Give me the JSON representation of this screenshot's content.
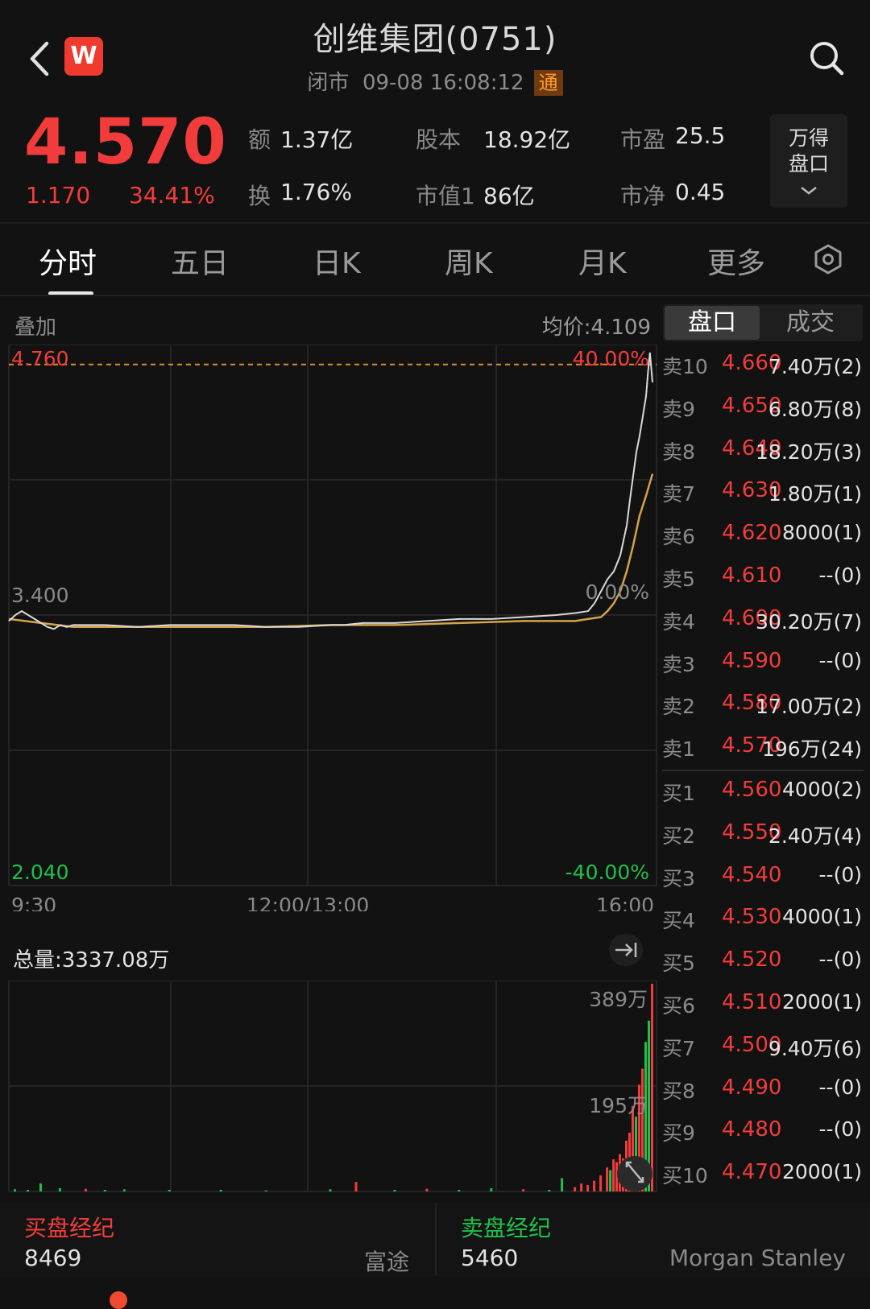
{
  "header": {
    "title": "创维集团(0751)",
    "status": "闭市",
    "datetime": "09-08 16:08:12",
    "badge": "通",
    "logo_letter": "W",
    "icons": {
      "back": "back-arrow-icon",
      "search": "search-icon"
    }
  },
  "quote": {
    "price": "4.570",
    "change": "1.170",
    "change_pct": "34.41%",
    "turnover_label": "额",
    "turnover": "1.37亿",
    "share_capital_label": "股本",
    "share_capital": "18.92亿",
    "pe_label": "市盈",
    "pe": "25.5",
    "turnover_rate_label": "换",
    "turnover_rate": "1.76%",
    "market_cap_label": "市值1",
    "market_cap": "86亿",
    "pb_label": "市净",
    "pb": "0.45",
    "wind_line1": "万得",
    "wind_line2": "盘口"
  },
  "tabs": [
    {
      "label": "分时",
      "active": true
    },
    {
      "label": "五日",
      "active": false
    },
    {
      "label": "日K",
      "active": false
    },
    {
      "label": "周K",
      "active": false
    },
    {
      "label": "月K",
      "active": false
    },
    {
      "label": "更多",
      "active": false
    }
  ],
  "chart_toolbar": {
    "overlay": "叠加",
    "avg_price": "均价:4.109",
    "seg_a": "盘口",
    "seg_b": "成交"
  },
  "chart_data": [
    {
      "type": "line",
      "y_left_top": "4.760",
      "y_left_mid": "3.400",
      "y_left_bottom": "2.040",
      "y_right_top": "40.00%",
      "y_right_mid": "0.00%",
      "y_right_bottom": "-40.00%",
      "x_start": "9:30",
      "x_mid": "12:00/13:00",
      "x_end": "16:00",
      "ylim": [
        2.04,
        4.76
      ],
      "xlim": [
        0,
        100
      ],
      "ref_line": 4.66,
      "series": [
        {
          "role": "price",
          "color": "#d9d9d9",
          "x": [
            0,
            1,
            2,
            3,
            4,
            5,
            6,
            7,
            8,
            9,
            10,
            15,
            20,
            25,
            30,
            35,
            40,
            45,
            50,
            52,
            55,
            60,
            65,
            70,
            75,
            80,
            85,
            88,
            90,
            91,
            92,
            93,
            94,
            95,
            96,
            96.5,
            97,
            97.5,
            98,
            98.5,
            99,
            99.3,
            99.6,
            100
          ],
          "y": [
            3.37,
            3.4,
            3.42,
            3.4,
            3.38,
            3.36,
            3.34,
            3.33,
            3.35,
            3.34,
            3.35,
            3.35,
            3.34,
            3.35,
            3.35,
            3.35,
            3.34,
            3.34,
            3.35,
            3.35,
            3.36,
            3.36,
            3.37,
            3.38,
            3.38,
            3.39,
            3.4,
            3.41,
            3.42,
            3.46,
            3.52,
            3.58,
            3.62,
            3.7,
            3.85,
            3.98,
            4.1,
            4.22,
            4.3,
            4.4,
            4.5,
            4.62,
            4.72,
            4.57
          ]
        },
        {
          "role": "average",
          "color": "#d4a24a",
          "x": [
            0,
            5,
            10,
            20,
            30,
            40,
            50,
            60,
            70,
            80,
            88,
            90,
            92,
            93,
            94,
            95,
            96,
            97,
            98,
            99,
            100
          ],
          "y": [
            3.38,
            3.36,
            3.34,
            3.34,
            3.34,
            3.34,
            3.35,
            3.35,
            3.36,
            3.37,
            3.37,
            3.38,
            3.39,
            3.42,
            3.46,
            3.52,
            3.62,
            3.75,
            3.9,
            4.0,
            4.11
          ]
        }
      ]
    },
    {
      "type": "bar",
      "title": "总量:3337.08万",
      "y_top_label": "389万",
      "y_mid_label": "195万",
      "ylim": [
        0,
        389
      ],
      "x": [
        1,
        3,
        5,
        8,
        12,
        15,
        18,
        25,
        33,
        40,
        50,
        54,
        60,
        65,
        70,
        75,
        80,
        84,
        86,
        88,
        89,
        90,
        91,
        92,
        93,
        93.5,
        94,
        94.5,
        95,
        95.5,
        96,
        96.5,
        97,
        97.5,
        98,
        98.5,
        99,
        99.5,
        100
      ],
      "values": [
        4,
        3,
        15,
        6,
        5,
        3,
        4,
        3,
        3,
        2,
        4,
        18,
        3,
        5,
        3,
        6,
        4,
        3,
        25,
        8,
        15,
        12,
        20,
        30,
        45,
        40,
        60,
        55,
        70,
        62,
        95,
        110,
        160,
        140,
        200,
        230,
        280,
        320,
        389
      ],
      "colors": [
        "g",
        "g",
        "g",
        "g",
        "r",
        "g",
        "g",
        "g",
        "g",
        "g",
        "g",
        "r",
        "g",
        "r",
        "g",
        "g",
        "r",
        "g",
        "g",
        "r",
        "r",
        "r",
        "r",
        "r",
        "r",
        "g",
        "r",
        "r",
        "r",
        "r",
        "r",
        "r",
        "r",
        "g",
        "r",
        "r",
        "g",
        "g",
        "r"
      ]
    }
  ],
  "orderbook": [
    {
      "label": "卖10",
      "price": "4.660",
      "vol": "7.40万(2)"
    },
    {
      "label": "卖9",
      "price": "4.650",
      "vol": "6.80万(8)"
    },
    {
      "label": "卖8",
      "price": "4.640",
      "vol": "18.20万(3)"
    },
    {
      "label": "卖7",
      "price": "4.630",
      "vol": "1.80万(1)"
    },
    {
      "label": "卖6",
      "price": "4.620",
      "vol": "8000(1)"
    },
    {
      "label": "卖5",
      "price": "4.610",
      "vol": "--(0)"
    },
    {
      "label": "卖4",
      "price": "4.600",
      "vol": "30.20万(7)"
    },
    {
      "label": "卖3",
      "price": "4.590",
      "vol": "--(0)"
    },
    {
      "label": "卖2",
      "price": "4.580",
      "vol": "17.00万(2)"
    },
    {
      "label": "卖1",
      "price": "4.570",
      "vol": "196万(24)"
    },
    {
      "label": "买1",
      "price": "4.560",
      "vol": "4000(2)"
    },
    {
      "label": "买2",
      "price": "4.550",
      "vol": "2.40万(4)"
    },
    {
      "label": "买3",
      "price": "4.540",
      "vol": "--(0)"
    },
    {
      "label": "买4",
      "price": "4.530",
      "vol": "4000(1)"
    },
    {
      "label": "买5",
      "price": "4.520",
      "vol": "--(0)"
    },
    {
      "label": "买6",
      "price": "4.510",
      "vol": "2000(1)"
    },
    {
      "label": "买7",
      "price": "4.500",
      "vol": "9.40万(6)"
    },
    {
      "label": "买8",
      "price": "4.490",
      "vol": "--(0)"
    },
    {
      "label": "买9",
      "price": "4.480",
      "vol": "--(0)"
    },
    {
      "label": "买10",
      "price": "4.470",
      "vol": "2000(1)"
    }
  ],
  "brokers": {
    "buy_title": "买盘经纪",
    "buy_id": "8469",
    "buy_name": "富途",
    "sell_title": "卖盘经纪",
    "sell_id": "5460",
    "sell_name": "Morgan Stanley"
  },
  "colors": {
    "up": "#f23c3c",
    "down": "#1fc04a",
    "bg": "#121212",
    "avg": "#d4a24a",
    "ref": "#e08a2a"
  }
}
